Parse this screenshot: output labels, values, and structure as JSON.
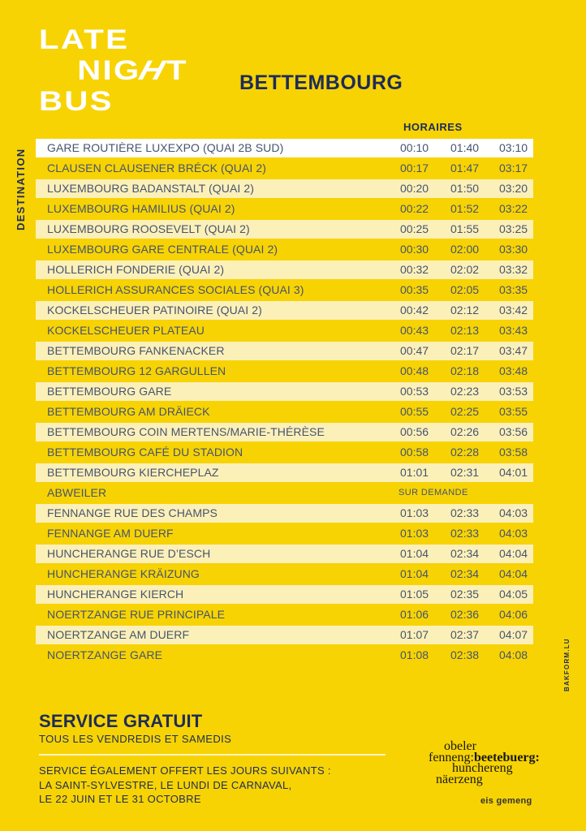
{
  "colors": {
    "bg": "#F7D304",
    "pale_row": "#FCF0B9",
    "white_row": "#FFFFFF",
    "navy": "#1E2C58",
    "row_text": "#46536F",
    "logo_white": "#FFFFFF",
    "wordmark_black": "#191919",
    "divider": "rgba(255,255,255,0.75)"
  },
  "header": {
    "logo": {
      "line1": "LATE",
      "night_pre": "NIG",
      "night_h": "H",
      "night_post": "T",
      "line3": "BUS"
    },
    "city": "BETTEMBOURG"
  },
  "table": {
    "destination_label": "DESTINATION",
    "horaires_label": "HORAIRES",
    "rows": [
      {
        "name": "GARE ROUTIÈRE LUXEXPO (QUAI 2B SUD)",
        "times": [
          "00:10",
          "01:40",
          "03:10"
        ],
        "band": "white"
      },
      {
        "name": "CLAUSEN CLAUSENER BRÉCK (QUAI 2)",
        "times": [
          "00:17",
          "01:47",
          "03:17"
        ],
        "band": "none"
      },
      {
        "name": "LUXEMBOURG BADANSTALT (QUAI 2)",
        "times": [
          "00:20",
          "01:50",
          "03:20"
        ],
        "band": "pale"
      },
      {
        "name": "LUXEMBOURG HAMILIUS (QUAI 2)",
        "times": [
          "00:22",
          "01:52",
          "03:22"
        ],
        "band": "none"
      },
      {
        "name": "LUXEMBOURG ROOSEVELT (QUAI 2)",
        "times": [
          "00:25",
          "01:55",
          "03:25"
        ],
        "band": "pale"
      },
      {
        "name": "LUXEMBOURG GARE CENTRALE (QUAI 2)",
        "times": [
          "00:30",
          "02:00",
          "03:30"
        ],
        "band": "none"
      },
      {
        "name": "HOLLERICH FONDERIE (QUAI 2)",
        "times": [
          "00:32",
          "02:02",
          "03:32"
        ],
        "band": "pale"
      },
      {
        "name": "HOLLERICH ASSURANCES SOCIALES (QUAI 3)",
        "times": [
          "00:35",
          "02:05",
          "03:35"
        ],
        "band": "none"
      },
      {
        "name": "KOCKELSCHEUER PATINOIRE (QUAI 2)",
        "times": [
          "00:42",
          "02:12",
          "03:42"
        ],
        "band": "pale"
      },
      {
        "name": "KOCKELSCHEUER PLATEAU",
        "times": [
          "00:43",
          "02:13",
          "03:43"
        ],
        "band": "none"
      },
      {
        "name": "BETTEMBOURG FANKENACKER",
        "times": [
          "00:47",
          "02:17",
          "03:47"
        ],
        "band": "pale"
      },
      {
        "name": "BETTEMBOURG 12 GARGULLEN",
        "times": [
          "00:48",
          "02:18",
          "03:48"
        ],
        "band": "none"
      },
      {
        "name": "BETTEMBOURG GARE",
        "times": [
          "00:53",
          "02:23",
          "03:53"
        ],
        "band": "pale"
      },
      {
        "name": "BETTEMBOURG AM DRÄIECK",
        "times": [
          "00:55",
          "02:25",
          "03:55"
        ],
        "band": "none"
      },
      {
        "name": "BETTEMBOURG COIN MERTENS/MARIE-THÉRÈSE",
        "times": [
          "00:56",
          "02:26",
          "03:56"
        ],
        "band": "pale"
      },
      {
        "name": "BETTEMBOURG CAFÉ DU STADION",
        "times": [
          "00:58",
          "02:28",
          "03:58"
        ],
        "band": "none"
      },
      {
        "name": "BETTEMBOURG KIERCHEPLAZ",
        "times": [
          "01:01",
          "02:31",
          "04:01"
        ],
        "band": "pale"
      },
      {
        "name": "ABWEILER",
        "note": "SUR DEMANDE",
        "band": "none"
      },
      {
        "name": "FENNANGE RUE DES CHAMPS",
        "times": [
          "01:03",
          "02:33",
          "04:03"
        ],
        "band": "pale"
      },
      {
        "name": "FENNANGE AM DUERF",
        "times": [
          "01:03",
          "02:33",
          "04:03"
        ],
        "band": "none"
      },
      {
        "name": "HUNCHERANGE RUE D’ESCH",
        "times": [
          "01:04",
          "02:34",
          "04:04"
        ],
        "band": "pale"
      },
      {
        "name": "HUNCHERANGE KRÄIZUNG",
        "times": [
          "01:04",
          "02:34",
          "04:04"
        ],
        "band": "none"
      },
      {
        "name": "HUNCHERANGE KIERCH",
        "times": [
          "01:05",
          "02:35",
          "04:05"
        ],
        "band": "pale"
      },
      {
        "name": "NOERTZANGE RUE PRINCIPALE",
        "times": [
          "01:06",
          "02:36",
          "04:06"
        ],
        "band": "none"
      },
      {
        "name": "NOERTZANGE AM DUERF",
        "times": [
          "01:07",
          "02:37",
          "04:07"
        ],
        "band": "pale"
      },
      {
        "name": "NOERTZANGE GARE",
        "times": [
          "01:08",
          "02:38",
          "04:08"
        ],
        "band": "none"
      }
    ]
  },
  "footer": {
    "service_title": "SERVICE GRATUIT",
    "service_sub": "TOUS LES VENDREDIS ET SAMEDIS",
    "extra_lines": [
      "SERVICE ÉGALEMENT OFFERT LES JOURS SUIVANTS :",
      "LA SAINT-SYLVESTRE, LE LUNDI DE CARNAVAL,",
      "LE 22 JUIN ET LE 31 OCTOBRE"
    ],
    "commune": {
      "line1": "obeler",
      "line2_regular": "fenneng:",
      "line2_bold": "beetebuerg:",
      "line3": "hunchereng",
      "line4": "näerzeng",
      "tagline": "eis gemeng"
    },
    "credit": "BAKFORM.LU"
  }
}
